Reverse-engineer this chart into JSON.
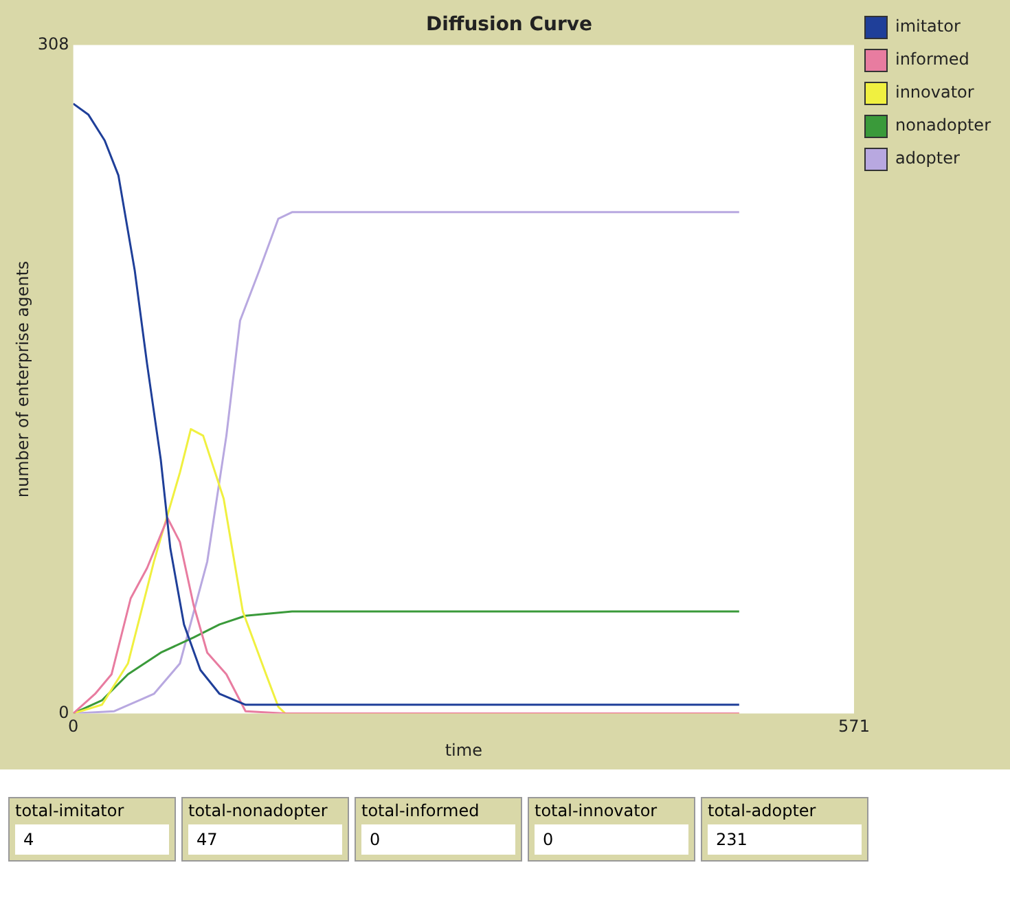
{
  "chart_data": {
    "type": "line",
    "title": "Diffusion Curve",
    "xlabel": "time",
    "ylabel": "number of enterprise agents",
    "xlim": [
      0,
      571
    ],
    "xticks": [
      0,
      571
    ],
    "ylim": [
      0,
      308
    ],
    "yticks": [
      0,
      308
    ],
    "grid": false,
    "legend": "right",
    "marker": "none",
    "line_style": "solid",
    "series": [
      {
        "name": "imitator",
        "color": "#1f3f99",
        "x": [
          0,
          11,
          23,
          33,
          45,
          54,
          64,
          71,
          81,
          93,
          107,
          126,
          487
        ],
        "values": [
          281,
          276,
          264,
          248,
          204,
          161,
          117,
          76,
          41,
          20,
          9,
          4,
          4
        ]
      },
      {
        "name": "informed",
        "color": "#e87ca0",
        "x": [
          0,
          16,
          28,
          42,
          54,
          69,
          78,
          88,
          98,
          112,
          126,
          155,
          487
        ],
        "values": [
          0,
          9,
          18,
          53,
          67,
          90,
          79,
          50,
          28,
          18,
          1,
          0,
          0
        ]
      },
      {
        "name": "innovator",
        "color": "#f0f040",
        "x": [
          0,
          21,
          40,
          59,
          78,
          86,
          95,
          110,
          124,
          141,
          150,
          155,
          487
        ],
        "values": [
          0,
          4,
          23,
          70,
          111,
          131,
          128,
          99,
          47,
          18,
          3,
          0,
          0
        ]
      },
      {
        "name": "nonadopter",
        "color": "#3a9a3a",
        "x": [
          0,
          21,
          40,
          64,
          88,
          107,
          126,
          160,
          487
        ],
        "values": [
          0,
          6,
          18,
          28,
          35,
          41,
          45,
          47,
          47
        ]
      },
      {
        "name": "adopter",
        "color": "#b8a8e0",
        "x": [
          0,
          30,
          59,
          78,
          98,
          112,
          122,
          136,
          150,
          160,
          487
        ],
        "values": [
          0,
          1,
          9,
          23,
          70,
          128,
          181,
          204,
          228,
          231,
          231
        ]
      }
    ],
    "annotations": [
      "total-imitator",
      "4",
      "total-nonadopter",
      "47",
      "total-informed",
      "0",
      "total-innovator",
      "0",
      "total-adopter",
      "231"
    ]
  }
}
